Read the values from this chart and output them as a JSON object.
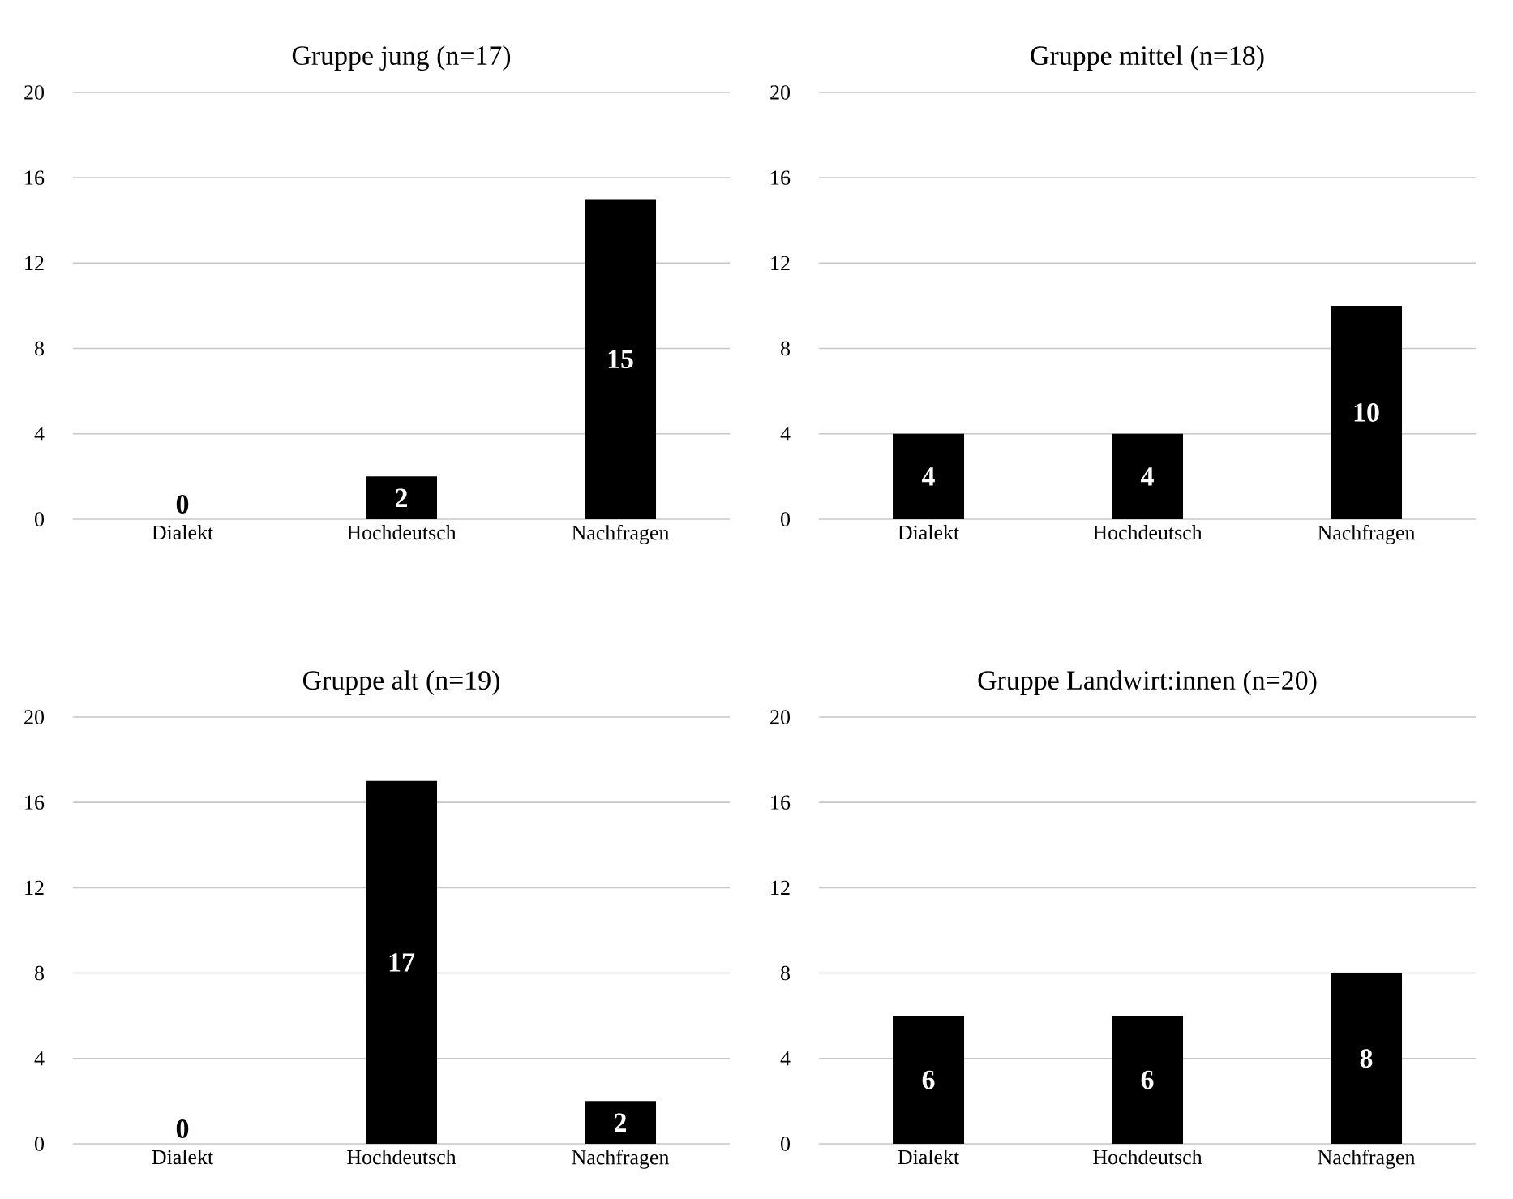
{
  "chart_data": [
    {
      "type": "bar",
      "title": "Gruppe jung (n=17)",
      "categories": [
        "Dialekt",
        "Hochdeutsch",
        "Nachfragen"
      ],
      "values": [
        0,
        2,
        15
      ],
      "color": "#000000",
      "ylim": [
        0,
        20
      ],
      "yticks": [
        0,
        4,
        8,
        12,
        16,
        20
      ],
      "grid": "y",
      "data_labels": true
    },
    {
      "type": "bar",
      "title": "Gruppe mittel (n=18)",
      "categories": [
        "Dialekt",
        "Hochdeutsch",
        "Nachfragen"
      ],
      "values": [
        4,
        4,
        10
      ],
      "color": "#000000",
      "ylim": [
        0,
        20
      ],
      "yticks": [
        0,
        4,
        8,
        12,
        16,
        20
      ],
      "grid": "y",
      "data_labels": true
    },
    {
      "type": "bar",
      "title": "Gruppe alt (n=19)",
      "categories": [
        "Dialekt",
        "Hochdeutsch",
        "Nachfragen"
      ],
      "values": [
        0,
        17,
        2
      ],
      "color": "#000000",
      "ylim": [
        0,
        20
      ],
      "yticks": [
        0,
        4,
        8,
        12,
        16,
        20
      ],
      "grid": "y",
      "data_labels": true
    },
    {
      "type": "bar",
      "title": "Gruppe Landwirt:innen (n=20)",
      "categories": [
        "Dialekt",
        "Hochdeutsch",
        "Nachfragen"
      ],
      "values": [
        6,
        6,
        8
      ],
      "color": "#000000",
      "ylim": [
        0,
        20
      ],
      "yticks": [
        0,
        4,
        8,
        12,
        16,
        20
      ],
      "grid": "y",
      "data_labels": true
    }
  ]
}
